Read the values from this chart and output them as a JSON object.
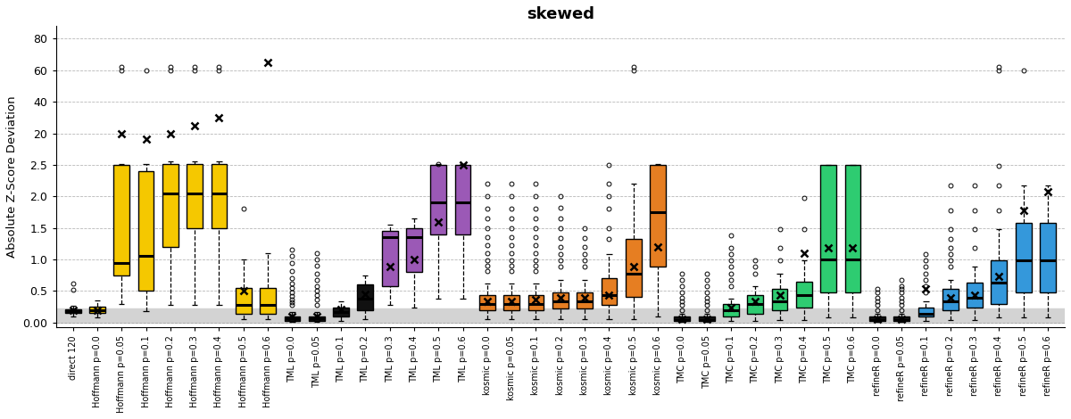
{
  "title": "skewed",
  "ylabel": "Absolute Z-Score Deviation",
  "background_color": "#ffffff",
  "gray_band_disp": [
    0.0,
    0.22
  ],
  "ytick_reals": [
    0.0,
    0.5,
    1.0,
    1.5,
    2.0,
    2.5,
    20,
    40,
    60,
    80
  ],
  "ytick_labels": [
    "0.00",
    "0.5",
    "1.0",
    "1.5",
    "2.0",
    "2.5",
    "20",
    "40",
    "60",
    "80"
  ],
  "groups": [
    {
      "label": "direct 120",
      "color": "#cccccc",
      "median": 0.175,
      "q1": 0.15,
      "q3": 0.21,
      "whislo": 0.1,
      "whishi": 0.27,
      "mean": 0.19,
      "fliers_high": [
        0.52,
        0.62
      ],
      "fliers_low": []
    },
    {
      "label": "Hoffmann p=0.0",
      "color": "#f5c800",
      "median": 0.19,
      "q1": 0.15,
      "q3": 0.25,
      "whislo": 0.08,
      "whishi": 0.35,
      "mean": 0.2,
      "fliers_high": [],
      "fliers_low": []
    },
    {
      "label": "Hoffmann p=0.05",
      "color": "#f5c800",
      "median": 0.95,
      "q1": 0.75,
      "q3": 2.55,
      "whislo": 0.3,
      "whishi": 3.0,
      "mean": 20,
      "fliers_high": [
        60,
        62
      ],
      "fliers_low": []
    },
    {
      "label": "Hoffmann p=0.1",
      "color": "#f5c800",
      "median": 1.05,
      "q1": 0.5,
      "q3": 2.4,
      "whislo": 0.18,
      "whishi": 3.0,
      "mean": 17,
      "fliers_high": [
        60
      ],
      "fliers_low": []
    },
    {
      "label": "Hoffmann p=0.2",
      "color": "#f5c800",
      "median": 2.05,
      "q1": 1.2,
      "q3": 2.7,
      "whislo": 0.28,
      "whishi": 4.5,
      "mean": 20,
      "fliers_high": [
        60,
        62
      ],
      "fliers_low": []
    },
    {
      "label": "Hoffmann p=0.3",
      "color": "#f5c800",
      "median": 2.05,
      "q1": 1.5,
      "q3": 2.7,
      "whislo": 0.28,
      "whishi": 4.5,
      "mean": 25,
      "fliers_high": [
        60,
        62
      ],
      "fliers_low": []
    },
    {
      "label": "Hoffmann p=0.4",
      "color": "#f5c800",
      "median": 2.05,
      "q1": 1.5,
      "q3": 2.7,
      "whislo": 0.28,
      "whishi": 4.5,
      "mean": 30,
      "fliers_high": [
        60,
        62
      ],
      "fliers_low": []
    },
    {
      "label": "Hoffmann p=0.5",
      "color": "#f5c800",
      "median": 0.28,
      "q1": 0.14,
      "q3": 0.55,
      "whislo": 0.05,
      "whishi": 1.0,
      "mean": 0.5,
      "fliers_high": [
        1.8
      ],
      "fliers_low": []
    },
    {
      "label": "Hoffmann p=0.6",
      "color": "#f5c800",
      "median": 0.28,
      "q1": 0.14,
      "q3": 0.55,
      "whislo": 0.05,
      "whishi": 1.1,
      "mean": 65,
      "fliers_high": [],
      "fliers_low": []
    },
    {
      "label": "TML p=0.0",
      "color": "#111111",
      "median": 0.06,
      "q1": 0.03,
      "q3": 0.1,
      "whislo": 0.01,
      "whishi": 0.16,
      "mean": 0.09,
      "fliers_high": [
        0.28,
        0.32,
        0.37,
        0.42,
        0.48,
        0.55,
        0.62,
        0.7,
        0.82,
        0.95,
        1.05,
        1.15
      ],
      "fliers_low": []
    },
    {
      "label": "TML p=0.05",
      "color": "#111111",
      "median": 0.06,
      "q1": 0.03,
      "q3": 0.1,
      "whislo": 0.01,
      "whishi": 0.16,
      "mean": 0.1,
      "fliers_high": [
        0.28,
        0.36,
        0.43,
        0.5,
        0.58,
        0.68,
        0.78,
        0.9,
        1.0,
        1.1
      ],
      "fliers_low": []
    },
    {
      "label": "TML p=0.1",
      "color": "#111111",
      "median": 0.17,
      "q1": 0.1,
      "q3": 0.24,
      "whislo": 0.03,
      "whishi": 0.33,
      "mean": 0.21,
      "fliers_high": [],
      "fliers_low": []
    },
    {
      "label": "TML p=0.2",
      "color": "#111111",
      "median": 0.38,
      "q1": 0.2,
      "q3": 0.6,
      "whislo": 0.05,
      "whishi": 0.75,
      "mean": 0.45,
      "fliers_high": [],
      "fliers_low": []
    },
    {
      "label": "TML p=0.3",
      "color": "#9b59b6",
      "median": 1.35,
      "q1": 0.58,
      "q3": 1.45,
      "whislo": 0.28,
      "whishi": 1.55,
      "mean": 0.88,
      "fliers_high": [],
      "fliers_low": []
    },
    {
      "label": "TML p=0.4",
      "color": "#9b59b6",
      "median": 1.35,
      "q1": 0.8,
      "q3": 1.5,
      "whislo": 0.24,
      "whishi": 1.65,
      "mean": 1.0,
      "fliers_high": [],
      "fliers_low": []
    },
    {
      "label": "TML p=0.5",
      "color": "#9b59b6",
      "median": 1.9,
      "q1": 1.4,
      "q3": 2.55,
      "whislo": 0.38,
      "whishi": 2.85,
      "mean": 1.6,
      "fliers_high": [
        3.1
      ],
      "fliers_low": []
    },
    {
      "label": "TML p=0.6",
      "color": "#9b59b6",
      "median": 1.9,
      "q1": 1.4,
      "q3": 2.55,
      "whislo": 0.38,
      "whishi": 2.85,
      "mean": 2.5,
      "fliers_high": [],
      "fliers_low": []
    },
    {
      "label": "kosmic p=0.0",
      "color": "#e67e22",
      "median": 0.3,
      "q1": 0.2,
      "q3": 0.44,
      "whislo": 0.05,
      "whishi": 0.62,
      "mean": 0.34,
      "fliers_high": [
        0.82,
        0.9,
        0.99,
        1.1,
        1.22,
        1.35,
        1.5,
        1.65,
        1.8,
        2.0,
        2.2
      ],
      "fliers_low": []
    },
    {
      "label": "kosmic p=0.05",
      "color": "#e67e22",
      "median": 0.3,
      "q1": 0.2,
      "q3": 0.44,
      "whislo": 0.05,
      "whishi": 0.62,
      "mean": 0.34,
      "fliers_high": [
        0.82,
        0.9,
        0.99,
        1.1,
        1.22,
        1.35,
        1.5,
        1.65,
        1.8,
        2.0,
        2.2
      ],
      "fliers_low": []
    },
    {
      "label": "kosmic p=0.1",
      "color": "#e67e22",
      "median": 0.3,
      "q1": 0.2,
      "q3": 0.44,
      "whislo": 0.05,
      "whishi": 0.62,
      "mean": 0.37,
      "fliers_high": [
        0.82,
        0.9,
        0.99,
        1.1,
        1.22,
        1.35,
        1.5,
        1.65,
        1.8,
        2.0,
        2.2
      ],
      "fliers_low": []
    },
    {
      "label": "kosmic p=0.2",
      "color": "#e67e22",
      "median": 0.34,
      "q1": 0.22,
      "q3": 0.48,
      "whislo": 0.05,
      "whishi": 0.68,
      "mean": 0.39,
      "fliers_high": [
        0.88,
        0.98,
        1.08,
        1.2,
        1.34,
        1.5,
        1.65,
        1.82,
        2.0
      ],
      "fliers_low": []
    },
    {
      "label": "kosmic p=0.3",
      "color": "#e67e22",
      "median": 0.34,
      "q1": 0.22,
      "q3": 0.48,
      "whislo": 0.05,
      "whishi": 0.68,
      "mean": 0.39,
      "fliers_high": [
        0.88,
        0.98,
        1.08,
        1.2,
        1.34,
        1.5
      ],
      "fliers_low": []
    },
    {
      "label": "kosmic p=0.4",
      "color": "#e67e22",
      "median": 0.44,
      "q1": 0.28,
      "q3": 0.7,
      "whislo": 0.05,
      "whishi": 1.08,
      "mean": 0.44,
      "fliers_high": [
        1.32,
        1.5,
        1.8,
        2.0,
        2.2,
        2.5
      ],
      "fliers_low": []
    },
    {
      "label": "kosmic p=0.5",
      "color": "#e67e22",
      "median": 0.78,
      "q1": 0.4,
      "q3": 1.32,
      "whislo": 0.05,
      "whishi": 2.2,
      "mean": 0.88,
      "fliers_high": [
        60,
        62
      ],
      "fliers_low": []
    },
    {
      "label": "kosmic p=0.6",
      "color": "#e67e22",
      "median": 1.75,
      "q1": 0.88,
      "q3": 2.58,
      "whislo": 0.1,
      "whishi": 2.72,
      "mean": 1.2,
      "fliers_high": [],
      "fliers_low": []
    },
    {
      "label": "TMC p=0.0",
      "color": "#111111",
      "median": 0.045,
      "q1": 0.02,
      "q3": 0.09,
      "whislo": 0.005,
      "whishi": 0.14,
      "mean": 0.05,
      "fliers_high": [
        0.2,
        0.28,
        0.33,
        0.39,
        0.48,
        0.58,
        0.68,
        0.78
      ],
      "fliers_low": []
    },
    {
      "label": "TMC p=0.05",
      "color": "#111111",
      "median": 0.045,
      "q1": 0.02,
      "q3": 0.09,
      "whislo": 0.005,
      "whishi": 0.14,
      "mean": 0.05,
      "fliers_high": [
        0.2,
        0.28,
        0.33,
        0.39,
        0.48,
        0.58,
        0.68,
        0.78
      ],
      "fliers_low": []
    },
    {
      "label": "TMC p=0.1",
      "color": "#2ecc71",
      "median": 0.19,
      "q1": 0.1,
      "q3": 0.29,
      "whislo": 0.02,
      "whishi": 0.38,
      "mean": 0.24,
      "fliers_high": [
        0.58,
        0.68,
        0.78,
        0.88,
        0.98,
        1.08,
        1.18,
        1.38
      ],
      "fliers_low": []
    },
    {
      "label": "TMC p=0.2",
      "color": "#2ecc71",
      "median": 0.29,
      "q1": 0.14,
      "q3": 0.44,
      "whislo": 0.02,
      "whishi": 0.58,
      "mean": 0.34,
      "fliers_high": [
        0.78,
        0.88,
        0.98
      ],
      "fliers_low": []
    },
    {
      "label": "TMC p=0.3",
      "color": "#2ecc71",
      "median": 0.34,
      "q1": 0.19,
      "q3": 0.54,
      "whislo": 0.04,
      "whishi": 0.78,
      "mean": 0.44,
      "fliers_high": [
        0.98,
        1.18,
        1.48
      ],
      "fliers_low": []
    },
    {
      "label": "TMC p=0.4",
      "color": "#2ecc71",
      "median": 0.44,
      "q1": 0.24,
      "q3": 0.64,
      "whislo": 0.04,
      "whishi": 0.98,
      "mean": 1.1,
      "fliers_high": [
        1.48,
        1.98
      ],
      "fliers_low": []
    },
    {
      "label": "TMC p=0.5",
      "color": "#2ecc71",
      "median": 1.0,
      "q1": 0.48,
      "q3": 2.52,
      "whislo": 0.08,
      "whishi": 2.65,
      "mean": 1.18,
      "fliers_high": [],
      "fliers_low": []
    },
    {
      "label": "TMC p=0.6",
      "color": "#2ecc71",
      "median": 1.0,
      "q1": 0.48,
      "q3": 2.52,
      "whislo": 0.08,
      "whishi": 2.65,
      "mean": 1.18,
      "fliers_high": [],
      "fliers_low": []
    },
    {
      "label": "refineR p=0.0",
      "color": "#111111",
      "median": 0.045,
      "q1": 0.02,
      "q3": 0.09,
      "whislo": 0.005,
      "whishi": 0.14,
      "mean": 0.05,
      "fliers_high": [
        0.2,
        0.28,
        0.33,
        0.39,
        0.48,
        0.53
      ],
      "fliers_low": []
    },
    {
      "label": "refineR p=0.05",
      "color": "#111111",
      "median": 0.045,
      "q1": 0.02,
      "q3": 0.09,
      "whislo": 0.005,
      "whishi": 0.14,
      "mean": 0.05,
      "fliers_high": [
        0.2,
        0.28,
        0.33,
        0.39,
        0.48,
        0.53,
        0.58,
        0.68
      ],
      "fliers_low": []
    },
    {
      "label": "refineR p=0.1",
      "color": "#3498db",
      "median": 0.14,
      "q1": 0.09,
      "q3": 0.24,
      "whislo": 0.02,
      "whishi": 0.33,
      "mean": 0.54,
      "fliers_high": [
        0.48,
        0.58,
        0.68,
        0.78,
        0.88,
        0.98,
        1.08
      ],
      "fliers_low": []
    },
    {
      "label": "refineR p=0.2",
      "color": "#3498db",
      "median": 0.34,
      "q1": 0.19,
      "q3": 0.54,
      "whislo": 0.04,
      "whishi": 0.68,
      "mean": 0.39,
      "fliers_high": [
        0.88,
        0.98,
        1.08,
        1.18,
        1.33,
        1.48,
        1.78,
        2.18
      ],
      "fliers_low": []
    },
    {
      "label": "refineR p=0.3",
      "color": "#3498db",
      "median": 0.39,
      "q1": 0.24,
      "q3": 0.63,
      "whislo": 0.04,
      "whishi": 0.88,
      "mean": 0.44,
      "fliers_high": [
        1.18,
        1.48,
        1.78,
        2.18
      ],
      "fliers_low": []
    },
    {
      "label": "refineR p=0.4",
      "color": "#3498db",
      "median": 0.63,
      "q1": 0.29,
      "q3": 0.98,
      "whislo": 0.08,
      "whishi": 1.48,
      "mean": 0.73,
      "fliers_high": [
        1.78,
        2.18,
        2.48,
        60,
        62
      ],
      "fliers_low": []
    },
    {
      "label": "refineR p=0.5",
      "color": "#3498db",
      "median": 0.98,
      "q1": 0.48,
      "q3": 1.58,
      "whislo": 0.08,
      "whishi": 2.18,
      "mean": 1.78,
      "fliers_high": [
        60
      ],
      "fliers_low": []
    },
    {
      "label": "refineR p=0.6",
      "color": "#3498db",
      "median": 0.98,
      "q1": 0.48,
      "q3": 1.58,
      "whislo": 0.08,
      "whishi": 2.18,
      "mean": 2.08,
      "fliers_high": [],
      "fliers_low": []
    }
  ]
}
